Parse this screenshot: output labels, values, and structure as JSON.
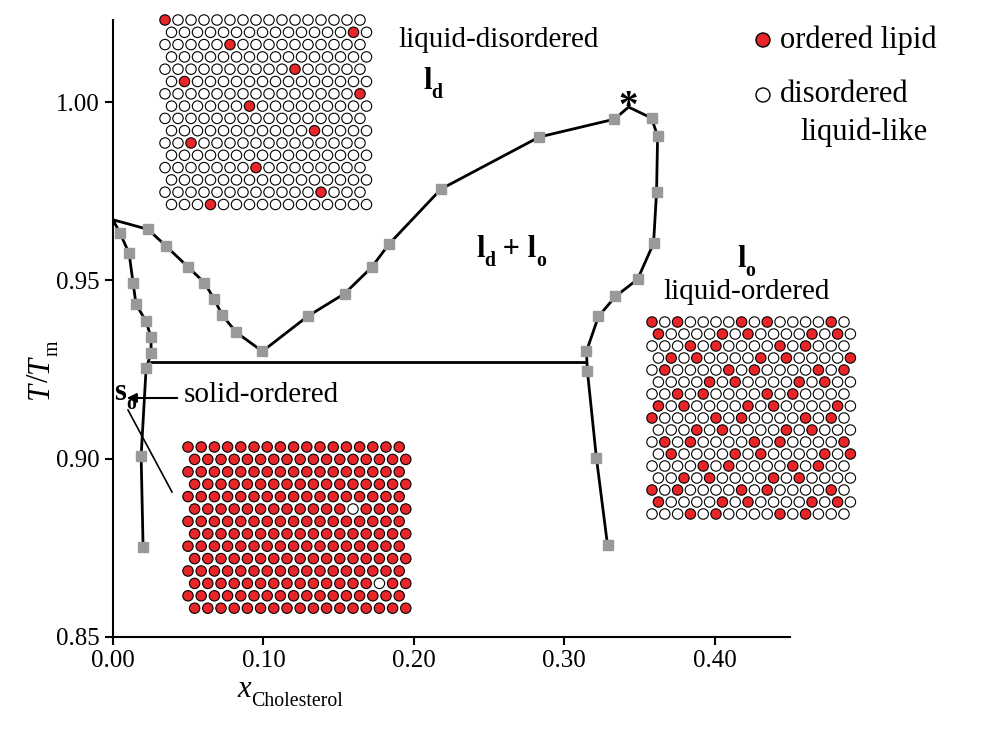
{
  "chart_data": {
    "type": "phase_diagram",
    "xlabel": [
      {
        "text": "x"
      },
      {
        "text": "Cholesterol",
        "sub": true
      }
    ],
    "ylabel": [
      {
        "text": "T"
      },
      {
        "text": "/"
      },
      {
        "text": "T"
      },
      {
        "text": "m",
        "sub": true
      }
    ],
    "xlim": [
      0,
      0.45
    ],
    "ylim": [
      0.85,
      1.023
    ],
    "xticks": [
      {
        "value": 0,
        "label": "0.00"
      },
      {
        "value": 0.1,
        "label": "0.10"
      },
      {
        "value": 0.2,
        "label": "0.20"
      },
      {
        "value": 0.3,
        "label": "0.30"
      },
      {
        "value": 0.4,
        "label": "0.40"
      }
    ],
    "yticks": [
      0.85,
      {
        "value": 0.9,
        "label": "0.90"
      },
      0.95,
      {
        "value": 1.0,
        "label": "1.00"
      }
    ],
    "boundaries": [
      {
        "color": "#000000",
        "x": [
          0,
          0.0233,
          0.0353,
          0.05,
          0.0607,
          0.0673,
          0.0727,
          0.082,
          0.0993,
          0.1293,
          0.154,
          0.172,
          0.1833,
          0.218,
          0.2833,
          0.3333,
          0.3427,
          0.358,
          0.362,
          0.3613,
          0.3593,
          0.3487,
          0.334,
          0.3227,
          0.3147,
          0.3153,
          0.3213,
          0.3287
        ],
        "y": [
          0.967,
          0.9643,
          0.9596,
          0.9537,
          0.9494,
          0.9447,
          0.9402,
          0.9354,
          0.9301,
          0.9399,
          0.9463,
          0.9537,
          0.9601,
          0.9756,
          0.9902,
          0.9952,
          0.9986,
          0.9955,
          0.9904,
          0.9747,
          0.9604,
          0.9503,
          0.9455,
          0.9399,
          0.9301,
          0.9247,
          0.9003,
          0.8758
        ]
      },
      {
        "color": "#000000",
        "x": [
          0,
          0.0047,
          0.0107,
          0.0133,
          0.0153,
          0.022,
          0.0253,
          0.0253
        ],
        "y": [
          0.967,
          0.9632,
          0.9576,
          0.9494,
          0.9433,
          0.9385,
          0.934,
          0.9295
        ]
      },
      {
        "color": "#000000",
        "x": [
          0.0253,
          0.022,
          0.0187,
          0.02
        ],
        "y": [
          0.9295,
          0.9253,
          0.9008,
          0.8753
        ]
      },
      {
        "color": "#000000",
        "x": [
          0.0253,
          0.3147
        ],
        "y": [
          0.9272,
          0.9272
        ]
      }
    ],
    "points": {
      "color": "#999999",
      "marker": "square",
      "x": [
        0.0047,
        0.0107,
        0.0133,
        0.0153,
        0.022,
        0.0253,
        0.0253,
        0.022,
        0.0187,
        0.02,
        0.0233,
        0.0353,
        0.05,
        0.0607,
        0.0673,
        0.0727,
        0.082,
        0.0993,
        0.1293,
        0.154,
        0.172,
        0.1833,
        0.218,
        0.2833,
        0.3333,
        0.358,
        0.362,
        0.3613,
        0.3593,
        0.3487,
        0.334,
        0.3227,
        0.3147,
        0.3153,
        0.3213,
        0.3287
      ],
      "y": [
        0.9632,
        0.9576,
        0.9494,
        0.9433,
        0.9385,
        0.934,
        0.9295,
        0.9253,
        0.9008,
        0.8753,
        0.9643,
        0.9596,
        0.9537,
        0.9494,
        0.9447,
        0.9402,
        0.9354,
        0.9301,
        0.9399,
        0.9463,
        0.9537,
        0.9601,
        0.9756,
        0.9902,
        0.9952,
        0.9955,
        0.9904,
        0.9747,
        0.9604,
        0.9503,
        0.9455,
        0.9399,
        0.9301,
        0.9247,
        0.9003,
        0.8758
      ]
    },
    "critical_point": {
      "x": 0.3427,
      "y": 0.9986,
      "label": "*"
    },
    "regions": [
      [
        {
          "text": "l"
        },
        {
          "text": "d",
          "sub": true
        }
      ],
      [
        {
          "text": "l"
        },
        {
          "text": "d",
          "sub": true
        },
        {
          "text": " + l"
        },
        {
          "text": "o",
          "sub": true
        }
      ],
      [
        {
          "text": "l"
        },
        {
          "text": "o",
          "sub": true
        }
      ],
      [
        {
          "text": "s"
        },
        {
          "text": "o",
          "sub": true
        }
      ]
    ],
    "annotations": [
      "liquid-disordered",
      "liquid-ordered",
      "solid-ordered"
    ],
    "symbol_key": [
      {
        "label": "ordered lipid",
        "color": "#e8262a"
      },
      {
        "label": "disordered\nliquid-like",
        "color": "#ffffff"
      }
    ]
  }
}
